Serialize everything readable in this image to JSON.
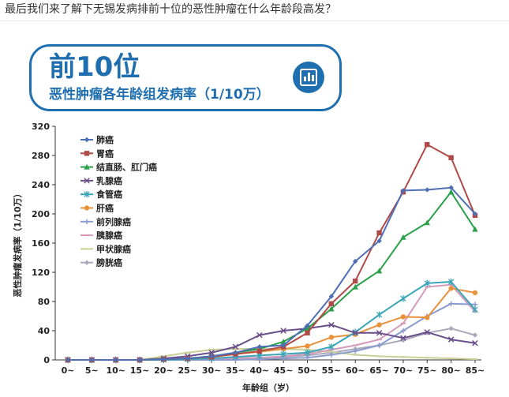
{
  "question": "最后我们来了解下无锡发病排前十位的恶性肿瘤在什么年龄段高发？",
  "banner": {
    "title": "前10位",
    "subtitle": "恶性肿瘤各年龄组发病率（1/10万）",
    "icon": "bar-chart-icon",
    "color": "#1f6fb0"
  },
  "chart_data": {
    "type": "line",
    "title": "",
    "xlabel": "年龄组（岁）",
    "ylabel": "恶性肿瘤发病率（1/10万）",
    "ylim": [
      0,
      320
    ],
    "yticks": [
      0,
      40,
      80,
      120,
      160,
      200,
      240,
      280,
      320
    ],
    "grid": false,
    "legend_position": "top-left",
    "categories": [
      "0~",
      "5~",
      "10~",
      "15~",
      "20~",
      "25~",
      "30~",
      "35~",
      "40~",
      "45~",
      "50~",
      "55~",
      "60~",
      "65~",
      "70~",
      "75~",
      "80~",
      "85~"
    ],
    "series": [
      {
        "name": "肺癌",
        "color": "#4f6fb5",
        "marker": "diamond",
        "values": [
          0,
          0,
          0,
          0,
          1,
          2,
          5,
          10,
          18,
          20,
          47,
          87,
          135,
          163,
          232,
          233,
          236,
          200
        ]
      },
      {
        "name": "胃癌",
        "color": "#b04a48",
        "marker": "square",
        "values": [
          0,
          0,
          0,
          0,
          1,
          2,
          4,
          8,
          12,
          18,
          37,
          77,
          108,
          174,
          230,
          295,
          277,
          198
        ]
      },
      {
        "name": "结直肠、肛门癌",
        "color": "#2aa04a",
        "marker": "triangle",
        "values": [
          0,
          0,
          0,
          0,
          1,
          2,
          5,
          10,
          15,
          25,
          43,
          70,
          100,
          122,
          168,
          188,
          230,
          179
        ]
      },
      {
        "name": "乳腺癌",
        "color": "#6a4f8a",
        "marker": "x",
        "values": [
          0,
          0,
          0,
          0,
          2,
          5,
          10,
          18,
          34,
          40,
          43,
          48,
          37,
          37,
          30,
          38,
          28,
          23
        ]
      },
      {
        "name": "食管癌",
        "color": "#3aa5b8",
        "marker": "star",
        "values": [
          0,
          0,
          0,
          0,
          0,
          1,
          2,
          4,
          6,
          8,
          10,
          18,
          38,
          62,
          84,
          105,
          107,
          69
        ]
      },
      {
        "name": "肝癌",
        "color": "#e8923c",
        "marker": "circle",
        "values": [
          0,
          0,
          0,
          0,
          1,
          2,
          4,
          8,
          11,
          15,
          19,
          31,
          35,
          48,
          59,
          58,
          98,
          92
        ]
      },
      {
        "name": "前列腺癌",
        "color": "#8a9bd0",
        "marker": "plus",
        "values": [
          0,
          0,
          0,
          0,
          0,
          0,
          0,
          0,
          1,
          2,
          3,
          7,
          12,
          20,
          40,
          60,
          77,
          76
        ]
      },
      {
        "name": "胰腺癌",
        "color": "#d49ab8",
        "marker": "dash",
        "values": [
          0,
          0,
          0,
          0,
          0,
          0,
          1,
          2,
          3,
          5,
          8,
          14,
          20,
          28,
          50,
          100,
          103,
          66
        ]
      },
      {
        "name": "甲状腺癌",
        "color": "#c9cf95",
        "marker": "dash",
        "values": [
          0,
          0,
          0,
          0,
          5,
          10,
          14,
          15,
          15,
          15,
          14,
          11,
          7,
          5,
          4,
          3,
          2,
          1
        ]
      },
      {
        "name": "膀胱癌",
        "color": "#a9a9bb",
        "marker": "diamond",
        "values": [
          0,
          0,
          0,
          0,
          0,
          0,
          1,
          2,
          3,
          4,
          6,
          10,
          15,
          20,
          27,
          37,
          43,
          34
        ]
      }
    ]
  }
}
